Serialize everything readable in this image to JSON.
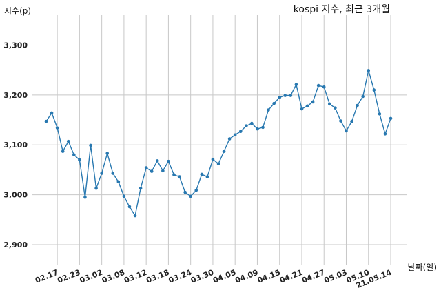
{
  "chart_data": {
    "type": "line",
    "title": "kospi 지수, 최근 3개월",
    "xlabel": "날짜(일)",
    "ylabel": "지수(p)",
    "ylim": [
      2860,
      3360
    ],
    "y_ticks": [
      2900,
      3000,
      3100,
      3200,
      3300
    ],
    "y_tick_labels": [
      "2,900",
      "3,000",
      "3,100",
      "3,200",
      "3,300"
    ],
    "x_tick_labels": [
      "02.17",
      "02.23",
      "03.02",
      "03.08",
      "03.12",
      "03.18",
      "03.24",
      "03.30",
      "04.05",
      "04.09",
      "04.15",
      "04.21",
      "04.27",
      "05.03",
      "05.10",
      "21.05.14"
    ],
    "x_tick_index": [
      2,
      6,
      10,
      14,
      18,
      22,
      26,
      30,
      34,
      38,
      42,
      46,
      50,
      54,
      58,
      62
    ],
    "grid": true,
    "color": "#2878b0",
    "values": [
      3147,
      3164,
      3134,
      3087,
      3107,
      3080,
      3070,
      2995,
      3099,
      3013,
      3043,
      3083,
      3043,
      3026,
      2997,
      2976,
      2958,
      3013,
      3054,
      3047,
      3068,
      3048,
      3067,
      3040,
      3036,
      3005,
      2997,
      3009,
      3041,
      3036,
      3071,
      3062,
      3087,
      3112,
      3120,
      3127,
      3138,
      3143,
      3132,
      3135,
      3170,
      3183,
      3195,
      3199,
      3199,
      3221,
      3172,
      3178,
      3186,
      3219,
      3216,
      3182,
      3174,
      3148,
      3128,
      3147,
      3179,
      3197,
      3249,
      3210,
      3162,
      3122,
      3153
    ]
  }
}
